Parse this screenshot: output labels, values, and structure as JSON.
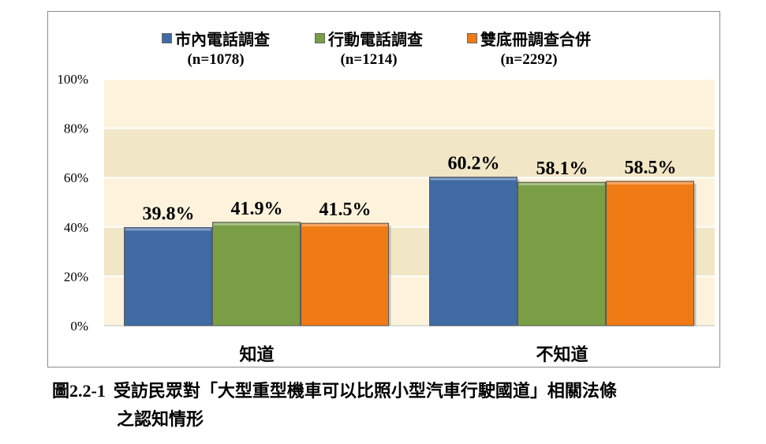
{
  "chart_data": {
    "type": "bar",
    "categories": [
      "知道",
      "不知道"
    ],
    "series": [
      {
        "name": "市內電話調查",
        "n": "(n=1078)",
        "values": [
          39.8,
          60.2
        ],
        "labels": [
          "39.8%",
          "60.2%"
        ]
      },
      {
        "name": "行動電話調查",
        "n": "(n=1214)",
        "values": [
          41.9,
          58.1
        ],
        "labels": [
          "41.9%",
          "58.1%"
        ]
      },
      {
        "name": "雙底冊調查合併",
        "n": "(n=2292)",
        "values": [
          41.5,
          58.5
        ],
        "labels": [
          "41.5%",
          "58.5%"
        ]
      }
    ],
    "yticks": [
      "0%",
      "20%",
      "40%",
      "60%",
      "80%",
      "100%"
    ],
    "ylim": [
      0,
      100
    ],
    "grid": true,
    "legend_position": "top",
    "colors": {
      "series": [
        "#3f6aa3",
        "#7a9e45",
        "#f07a14"
      ],
      "plot_bands": [
        "#fdf3dc",
        "#f1e6c6"
      ],
      "gridline": "#ffffff"
    }
  },
  "caption": {
    "number": "圖2.2-1",
    "line1": "受訪民眾對「大型重型機車可以比照小型汽車行駛國道」相關法條",
    "line2": "之認知情形"
  }
}
